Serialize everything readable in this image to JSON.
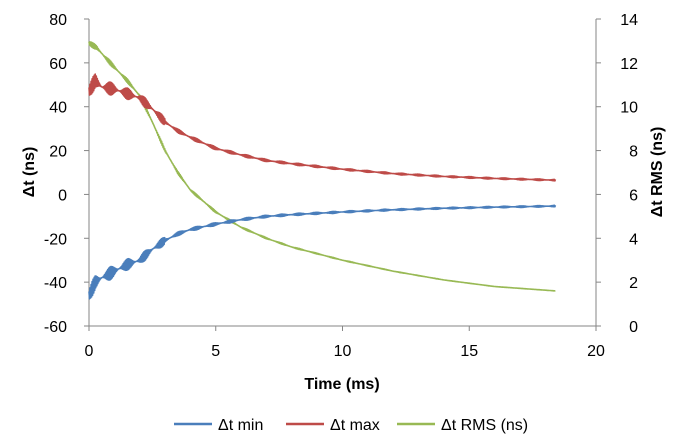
{
  "chart_data": {
    "type": "line",
    "xlabel": "Time (ms)",
    "ylabel": "Δt (ns)",
    "y2label": "Δt RMS (ns)",
    "xlim": [
      0,
      20
    ],
    "ylim": [
      -60,
      80
    ],
    "y2lim": [
      0,
      14
    ],
    "xticks": [
      "0",
      "5",
      "10",
      "15",
      "20"
    ],
    "yticks": [
      "80",
      "60",
      "40",
      "20",
      "0",
      "-20",
      "-40",
      "-60"
    ],
    "y2ticks": [
      "14",
      "12",
      "10",
      "8",
      "6",
      "4",
      "2",
      "0"
    ],
    "grid": false,
    "legend_position": "bottom",
    "series": [
      {
        "name": "Δt min",
        "axis": "left",
        "color": "#4a7ebb",
        "x": [
          0,
          0.25,
          0.5,
          1,
          1.5,
          2,
          2.5,
          3,
          3.5,
          4,
          5,
          6,
          7,
          8,
          10,
          12,
          14,
          16,
          18.4
        ],
        "y": [
          -46,
          -40,
          -38,
          -35,
          -32,
          -30,
          -25,
          -21,
          -18,
          -16,
          -13.5,
          -11.5,
          -10,
          -9.2,
          -8,
          -7,
          -6.3,
          -5.8,
          -5.3
        ]
      },
      {
        "name": "Δt max",
        "axis": "left",
        "color": "#be4b48",
        "x": [
          0,
          0.25,
          0.5,
          1,
          1.5,
          2,
          2.5,
          3,
          3.5,
          4,
          5,
          6,
          7,
          8,
          10,
          12,
          14,
          16,
          18.4
        ],
        "y": [
          47,
          52,
          49,
          48,
          46,
          44,
          39,
          33,
          29,
          26,
          21,
          18,
          15.5,
          14,
          11.5,
          9.5,
          8.2,
          7.3,
          6.5
        ]
      },
      {
        "name": "Δt RMS (ns)",
        "axis": "right",
        "color": "#98b954",
        "x": [
          0,
          0.3,
          0.6,
          1,
          1.5,
          2,
          2.5,
          3,
          3.5,
          4,
          5,
          6,
          7,
          8,
          10,
          12,
          14,
          16,
          18.4
        ],
        "y": [
          12.9,
          12.7,
          12.3,
          11.8,
          11.2,
          10.5,
          9.3,
          8.0,
          7.0,
          6.2,
          5.2,
          4.5,
          4.0,
          3.6,
          3.0,
          2.5,
          2.1,
          1.8,
          1.6
        ]
      }
    ]
  }
}
